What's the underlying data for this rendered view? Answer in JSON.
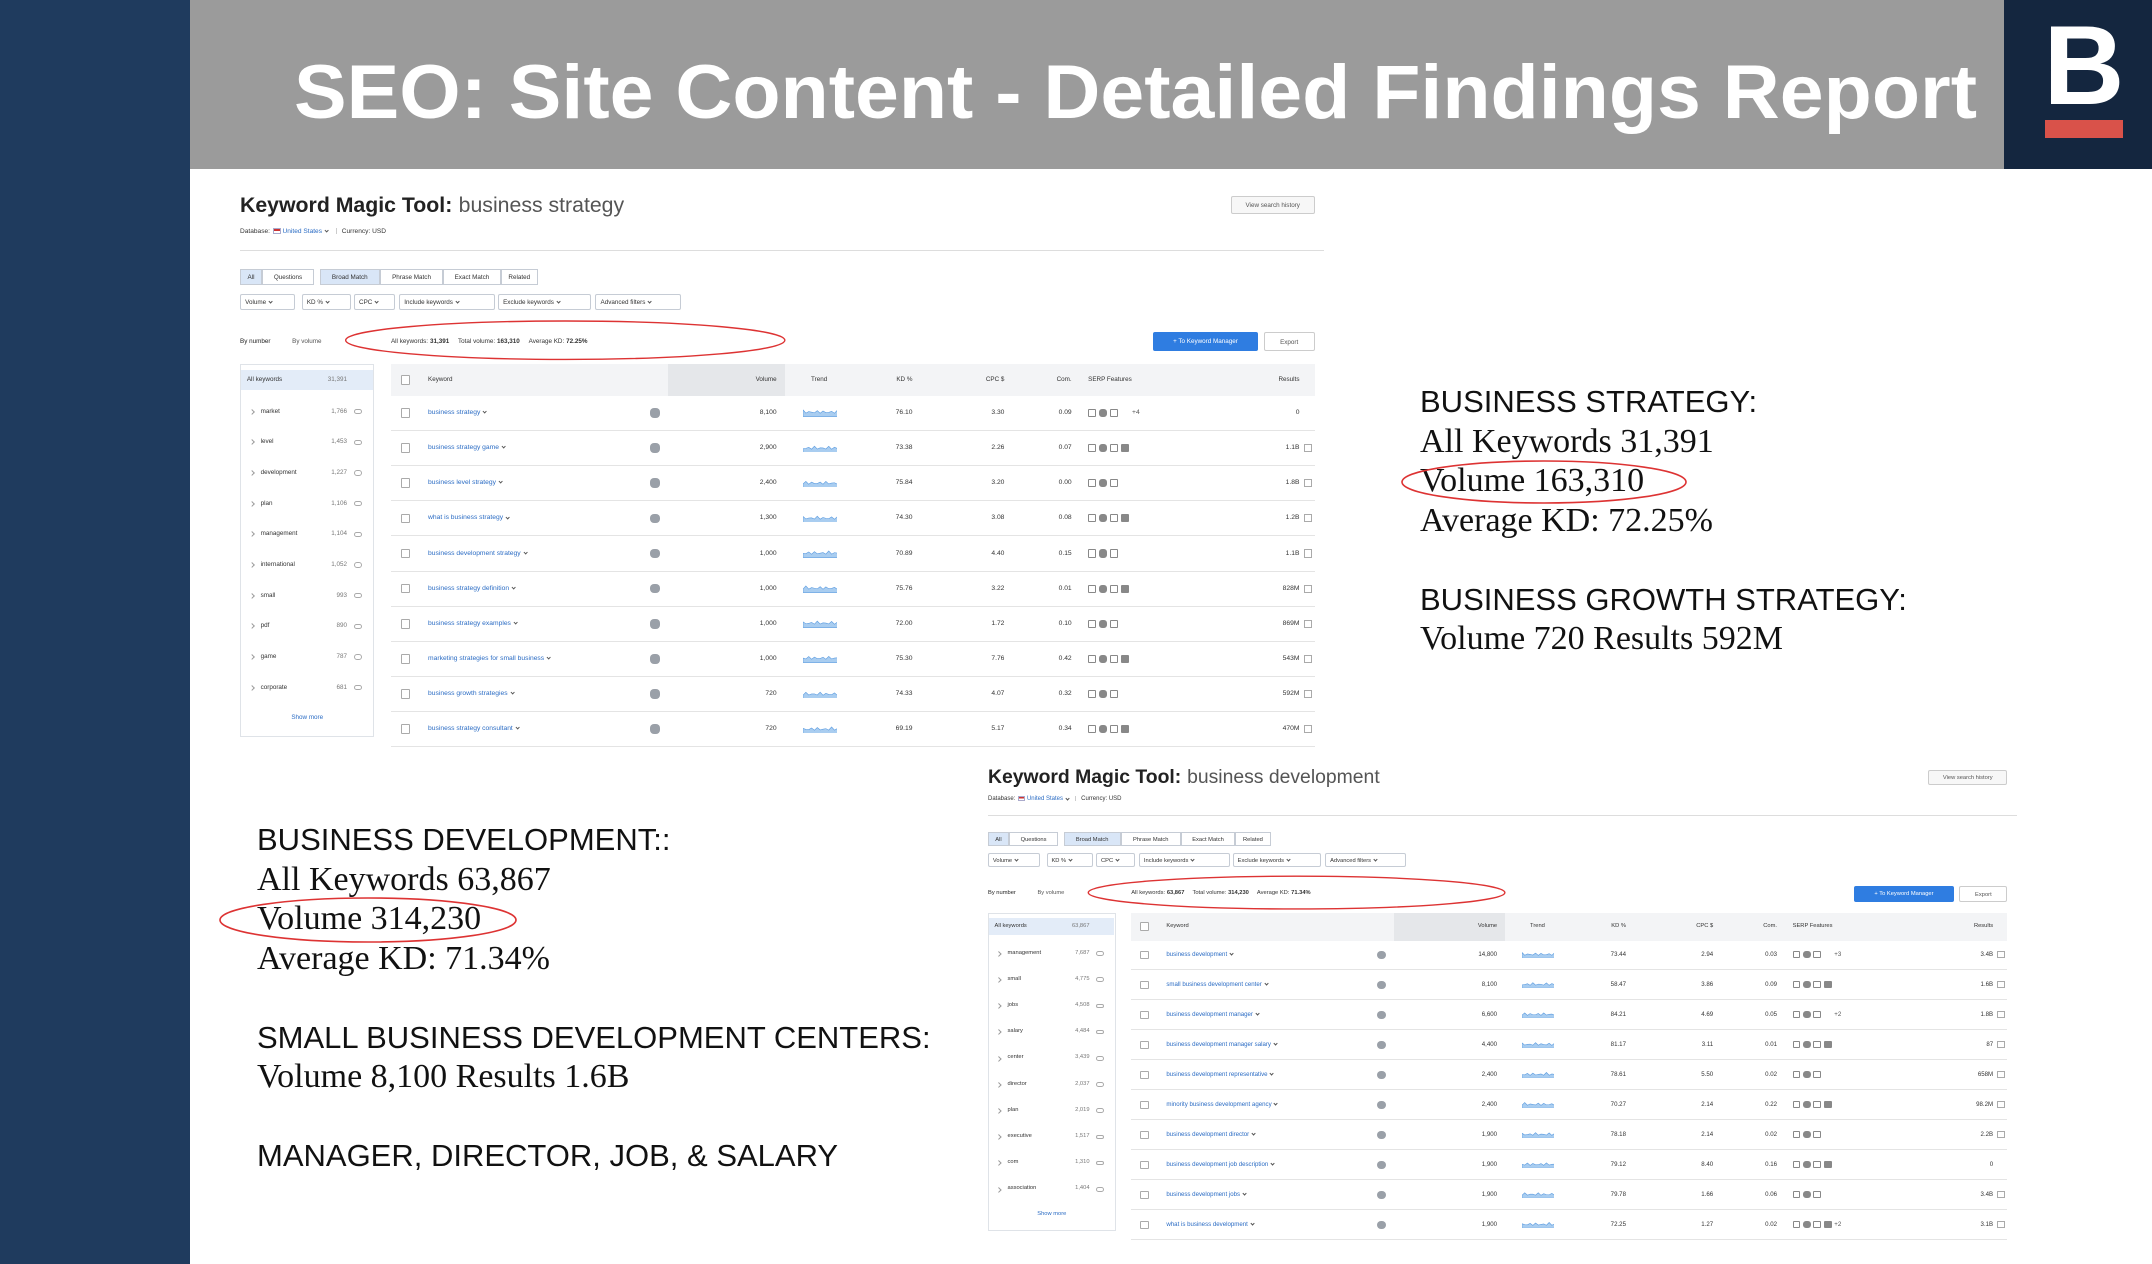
{
  "header": {
    "title": "SEO: Site Content - Detailed Findings Report",
    "logo": "B"
  },
  "panels": [
    {
      "tool_label": "Keyword Magic Tool:",
      "query": "business strategy",
      "database_label": "Database:",
      "country": "United States",
      "currency": "Currency: USD",
      "history_button": "View search history",
      "tabs": [
        "All",
        "Questions",
        "Broad Match",
        "Phrase Match",
        "Exact Match",
        "Related"
      ],
      "filters": [
        "Volume",
        "KD %",
        "CPC",
        "Include keywords",
        "Exclude keywords",
        "Advanced filters"
      ],
      "view_modes": [
        "By number",
        "By volume"
      ],
      "summary": {
        "keywords_label": "All keywords:",
        "keywords": "31,391",
        "volume_label": "Total volume:",
        "volume": "163,310",
        "kd_label": "Average KD:",
        "kd": "72.25%"
      },
      "manager_button": "+ To Keyword Manager",
      "export_button": "Export",
      "sidebar": [
        {
          "name": "All keywords",
          "count": "31,391"
        },
        {
          "name": "market",
          "count": "1,766"
        },
        {
          "name": "level",
          "count": "1,453"
        },
        {
          "name": "development",
          "count": "1,227"
        },
        {
          "name": "plan",
          "count": "1,106"
        },
        {
          "name": "management",
          "count": "1,104"
        },
        {
          "name": "international",
          "count": "1,052"
        },
        {
          "name": "small",
          "count": "993"
        },
        {
          "name": "pdf",
          "count": "890"
        },
        {
          "name": "game",
          "count": "787"
        },
        {
          "name": "corporate",
          "count": "681"
        }
      ],
      "show_more": "Show more",
      "columns": [
        "Keyword",
        "Volume",
        "Trend",
        "KD %",
        "CPC $",
        "Com.",
        "SERP Features",
        "Results"
      ],
      "rows": [
        {
          "keyword": "business strategy",
          "volume": "8,100",
          "kd": "76.10",
          "cpc": "3.30",
          "com": "0.09",
          "serp_extra": "+4",
          "results": "0"
        },
        {
          "keyword": "business strategy game",
          "volume": "2,900",
          "kd": "73.38",
          "cpc": "2.26",
          "com": "0.07",
          "results": "1.1B"
        },
        {
          "keyword": "business level strategy",
          "volume": "2,400",
          "kd": "75.84",
          "cpc": "3.20",
          "com": "0.00",
          "results": "1.8B"
        },
        {
          "keyword": "what is business strategy",
          "volume": "1,300",
          "kd": "74.30",
          "cpc": "3.08",
          "com": "0.08",
          "results": "1.2B"
        },
        {
          "keyword": "business development strategy",
          "volume": "1,000",
          "kd": "70.89",
          "cpc": "4.40",
          "com": "0.15",
          "results": "1.1B"
        },
        {
          "keyword": "business strategy definition",
          "volume": "1,000",
          "kd": "75.76",
          "cpc": "3.22",
          "com": "0.01",
          "results": "828M"
        },
        {
          "keyword": "business strategy examples",
          "volume": "1,000",
          "kd": "72.00",
          "cpc": "1.72",
          "com": "0.10",
          "results": "869M"
        },
        {
          "keyword": "marketing strategies for small business",
          "volume": "1,000",
          "kd": "75.30",
          "cpc": "7.76",
          "com": "0.42",
          "results": "543M"
        },
        {
          "keyword": "business growth strategies",
          "volume": "720",
          "kd": "74.33",
          "cpc": "4.07",
          "com": "0.32",
          "results": "592M"
        },
        {
          "keyword": "business strategy consultant",
          "volume": "720",
          "kd": "69.19",
          "cpc": "5.17",
          "com": "0.34",
          "results": "470M"
        }
      ]
    },
    {
      "tool_label": "Keyword Magic Tool:",
      "query": "business development",
      "database_label": "Database:",
      "country": "United States",
      "currency": "Currency: USD",
      "history_button": "View search history",
      "tabs": [
        "All",
        "Questions",
        "Broad Match",
        "Phrase Match",
        "Exact Match",
        "Related"
      ],
      "filters": [
        "Volume",
        "KD %",
        "CPC",
        "Include keywords",
        "Exclude keywords",
        "Advanced filters"
      ],
      "view_modes": [
        "By number",
        "By volume"
      ],
      "summary": {
        "keywords_label": "All keywords:",
        "keywords": "63,867",
        "volume_label": "Total volume:",
        "volume": "314,230",
        "kd_label": "Average KD:",
        "kd": "71.34%"
      },
      "manager_button": "+ To Keyword Manager",
      "export_button": "Export",
      "sidebar": [
        {
          "name": "All keywords",
          "count": "63,867"
        },
        {
          "name": "management",
          "count": "7,687"
        },
        {
          "name": "small",
          "count": "4,775"
        },
        {
          "name": "jobs",
          "count": "4,508"
        },
        {
          "name": "salary",
          "count": "4,484"
        },
        {
          "name": "center",
          "count": "3,439"
        },
        {
          "name": "director",
          "count": "2,037"
        },
        {
          "name": "plan",
          "count": "2,019"
        },
        {
          "name": "executive",
          "count": "1,517"
        },
        {
          "name": "com",
          "count": "1,310"
        },
        {
          "name": "association",
          "count": "1,404"
        }
      ],
      "show_more": "Show more",
      "columns": [
        "Keyword",
        "Volume",
        "Trend",
        "KD %",
        "CPC $",
        "Com.",
        "SERP Features",
        "Results"
      ],
      "rows": [
        {
          "keyword": "business development",
          "volume": "14,800",
          "kd": "73.44",
          "cpc": "2.94",
          "com": "0.03",
          "serp_extra": "+3",
          "results": "3.4B"
        },
        {
          "keyword": "small business development center",
          "volume": "8,100",
          "kd": "58.47",
          "cpc": "3.86",
          "com": "0.09",
          "results": "1.6B"
        },
        {
          "keyword": "business development manager",
          "volume": "6,600",
          "kd": "84.21",
          "cpc": "4.69",
          "com": "0.05",
          "serp_extra": "+2",
          "results": "1.8B"
        },
        {
          "keyword": "business development manager salary",
          "volume": "4,400",
          "kd": "81.17",
          "cpc": "3.11",
          "com": "0.01",
          "results": "87"
        },
        {
          "keyword": "business development representative",
          "volume": "2,400",
          "kd": "78.61",
          "cpc": "5.50",
          "com": "0.02",
          "results": "658M"
        },
        {
          "keyword": "minority business development agency",
          "volume": "2,400",
          "kd": "70.27",
          "cpc": "2.14",
          "com": "0.22",
          "results": "98.2M"
        },
        {
          "keyword": "business development director",
          "volume": "1,900",
          "kd": "78.18",
          "cpc": "2.14",
          "com": "0.02",
          "results": "2.2B"
        },
        {
          "keyword": "business development job description",
          "volume": "1,900",
          "kd": "79.12",
          "cpc": "8.40",
          "com": "0.16",
          "results": "0"
        },
        {
          "keyword": "business development jobs",
          "volume": "1,900",
          "kd": "79.78",
          "cpc": "1.66",
          "com": "0.06",
          "results": "3.4B"
        },
        {
          "keyword": "what is business development",
          "volume": "1,900",
          "kd": "72.25",
          "cpc": "1.27",
          "com": "0.02",
          "serp_extra": "+2",
          "results": "3.1B"
        }
      ]
    }
  ],
  "notes": [
    {
      "sections": [
        {
          "heading": "BUSINESS STRATEGY:",
          "lines": [
            "All Keywords 31,391",
            "Volume 163,310",
            "Average KD: 72.25%"
          ]
        },
        {
          "heading": "BUSINESS GROWTH STRATEGY:",
          "lines": [
            "Volume 720 Results 592M"
          ]
        }
      ]
    },
    {
      "sections": [
        {
          "heading": "BUSINESS DEVELOPMENT::",
          "lines": [
            "All Keywords 63,867",
            "Volume 314,230",
            "Average KD: 71.34%"
          ]
        },
        {
          "heading": "SMALL BUSINESS DEVELOPMENT CENTERS:",
          "lines": [
            "Volume 8,100  Results 1.6B"
          ]
        },
        {
          "heading": "MANAGER, DIRECTOR, JOB, & SALARY"
        }
      ]
    }
  ]
}
